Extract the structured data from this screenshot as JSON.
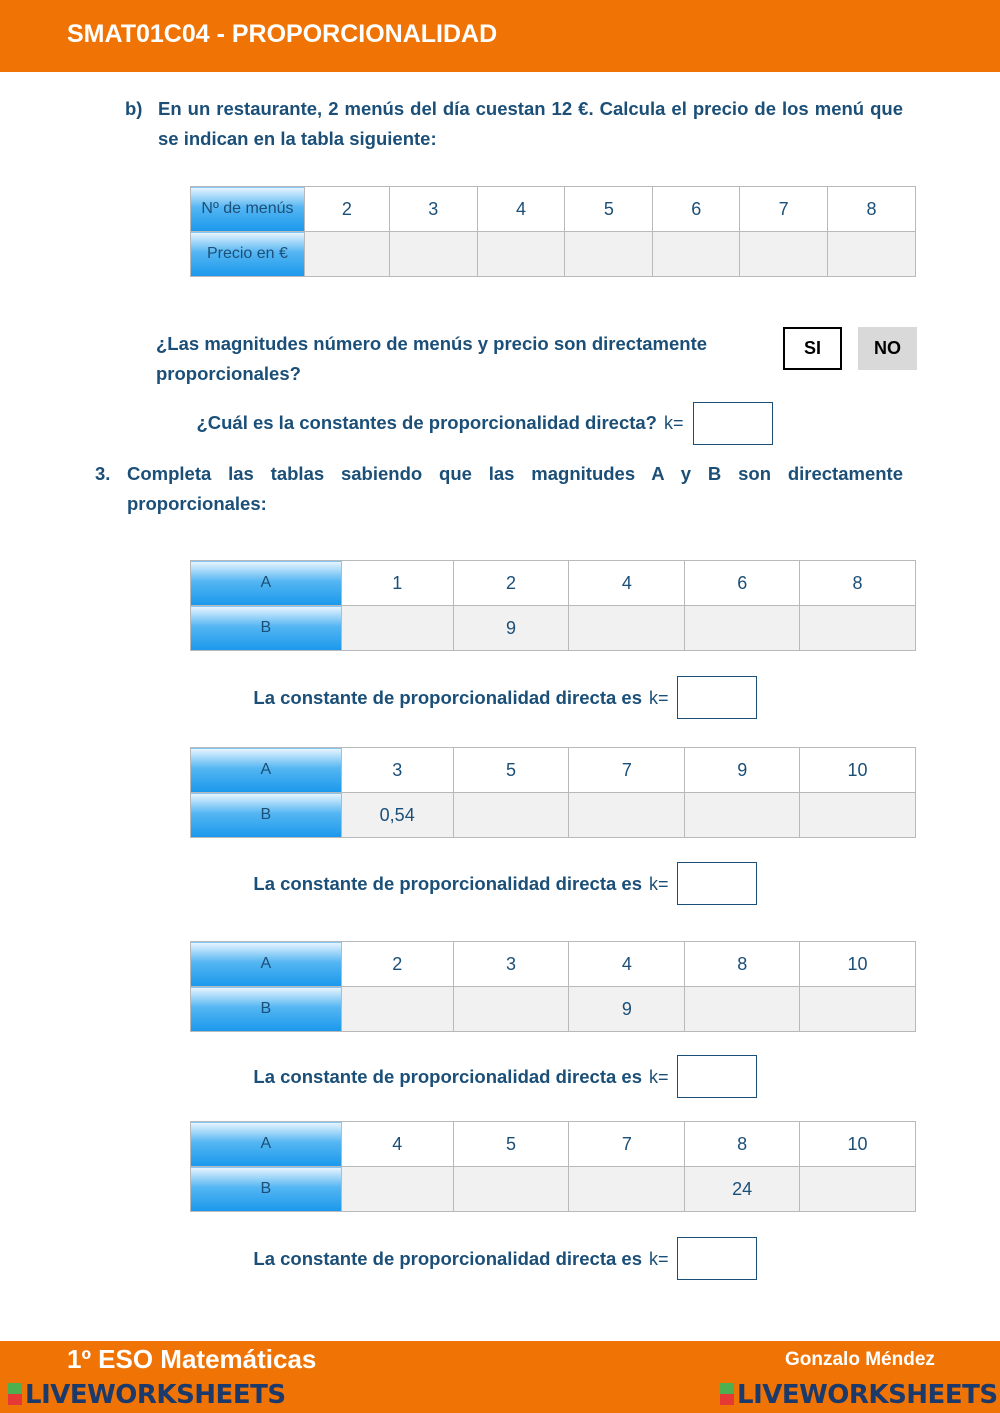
{
  "header": {
    "title": "SMAT01C04 - PROPORCIONALIDAD"
  },
  "part_b": {
    "label": "b)",
    "text": "En un restaurante, 2 menús del día cuestan 12 €.  Calcula el precio de los menú que se indican en la tabla siguiente:",
    "table": {
      "row1_header": "Nº de menús",
      "row1": [
        "2",
        "3",
        "4",
        "5",
        "6",
        "7",
        "8"
      ],
      "row2_header": "Precio en €",
      "row2": [
        "",
        "",
        "",
        "",
        "",
        "",
        ""
      ]
    },
    "question1": "¿Las magnitudes número de menús y precio son directamente proporcionales?",
    "si_label": "SI",
    "no_label": "NO",
    "question2": "¿Cuál es la constantes de proporcionalidad directa?",
    "k_label": "k="
  },
  "exercise3": {
    "number": "3.",
    "text": "Completa las tablas sabiendo que las magnitudes A y B son directamente proporcionales:",
    "k_text": "La constante de proporcionalidad directa es",
    "k_label": "k=",
    "tables": [
      {
        "A": [
          "1",
          "2",
          "4",
          "6",
          "8"
        ],
        "B": [
          "",
          "9",
          "",
          "",
          ""
        ]
      },
      {
        "A": [
          "3",
          "5",
          "7",
          "9",
          "10"
        ],
        "B": [
          "0,54",
          "",
          "",
          "",
          ""
        ]
      },
      {
        "A": [
          "2",
          "3",
          "4",
          "8",
          "10"
        ],
        "B": [
          "",
          "",
          "9",
          "",
          ""
        ]
      },
      {
        "A": [
          "4",
          "5",
          "7",
          "8",
          "10"
        ],
        "B": [
          "",
          "",
          "",
          "24",
          ""
        ]
      }
    ],
    "row_a": "A",
    "row_b": "B"
  },
  "footer": {
    "left": "1º ESO Matemáticas",
    "right": "Gonzalo Méndez",
    "watermark": "LIVEWORKSHEETS"
  }
}
